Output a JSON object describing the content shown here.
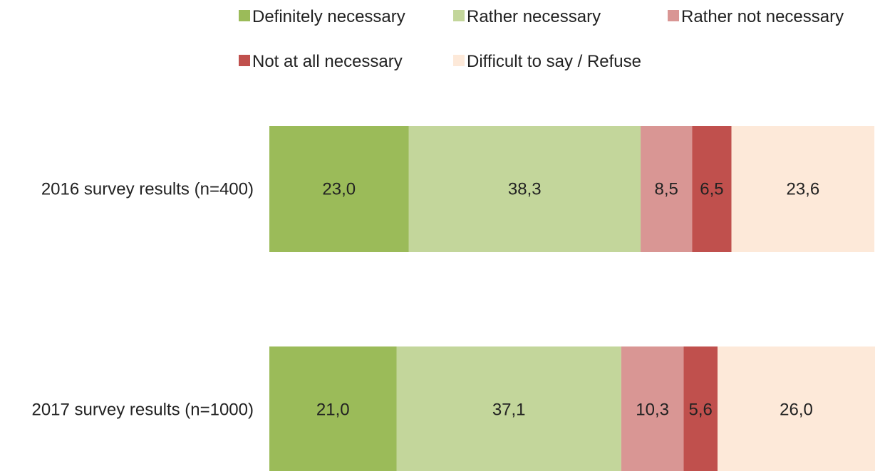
{
  "chart_data": {
    "type": "bar",
    "orientation": "horizontal",
    "stacked": true,
    "categories": [
      "2016 survey results (n=400)",
      "2017 survey results (n=1000)"
    ],
    "series": [
      {
        "name": "Definitely necessary",
        "color": "#9bbb59",
        "values": [
          23.0,
          21.0
        ],
        "labels": [
          "23,0",
          "21,0"
        ]
      },
      {
        "name": "Rather necessary",
        "color": "#c3d69b",
        "values": [
          38.3,
          37.1
        ],
        "labels": [
          "38,3",
          "37,1"
        ]
      },
      {
        "name": "Rather not necessary",
        "color": "#d99694",
        "values": [
          8.5,
          10.3
        ],
        "labels": [
          "8,5",
          "10,3"
        ]
      },
      {
        "name": "Not at all necessary",
        "color": "#c0504d",
        "values": [
          6.5,
          5.6
        ],
        "labels": [
          "6,5",
          "5,6"
        ]
      },
      {
        "name": "Difficult to say / Refuse",
        "color": "#fde9d9",
        "values": [
          23.6,
          26.0
        ],
        "labels": [
          "23,6",
          "26,0"
        ]
      }
    ],
    "xlim": [
      0,
      100
    ],
    "legend_position": "top",
    "grid": false,
    "title": "",
    "xlabel": "",
    "ylabel": ""
  }
}
